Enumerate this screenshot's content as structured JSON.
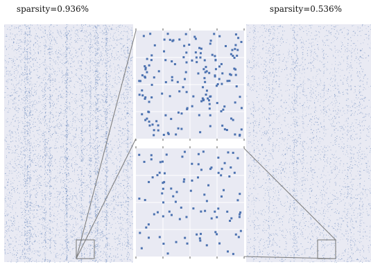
{
  "figure": {
    "left_panel_label": "sparsity=0.936%",
    "right_panel_label": "sparsity=0.536%"
  },
  "colors": {
    "point_color": "#4c72b0",
    "background": "#e9eaf3",
    "grid": "#ffffff",
    "connector": "#808080"
  },
  "chart_data": [
    {
      "type": "scatter",
      "title": "sparsity=0.936%",
      "sparsity_percent": 0.936
    },
    {
      "type": "scatter",
      "title": "sparsity=0.536%",
      "sparsity_percent": 0.536
    },
    {
      "type": "scatter",
      "title": "",
      "zoomed_from": "sparsity=0.936%"
    },
    {
      "type": "scatter",
      "title": "",
      "zoomed_from": "sparsity=0.536%"
    }
  ]
}
